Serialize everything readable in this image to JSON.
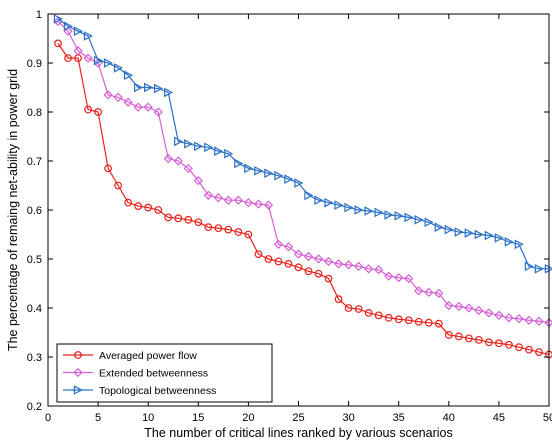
{
  "chart_data": {
    "type": "line",
    "title": "",
    "xlabel": "The number of critical lines ranked by various scenarios",
    "ylabel": "The percentage of remaing net-ability in power grid",
    "xlim": [
      0,
      50
    ],
    "ylim": [
      0.2,
      1
    ],
    "xticks": [
      0,
      5,
      10,
      15,
      20,
      25,
      30,
      35,
      40,
      45,
      50
    ],
    "yticks": [
      0.2,
      0.3,
      0.4,
      0.5,
      0.6,
      0.7,
      0.8,
      0.9,
      1
    ],
    "ytick_labels": [
      "0.2",
      "0.3",
      "0.4",
      "0.5",
      "0.6",
      "0.7",
      "0.8",
      "0.9",
      "1"
    ],
    "grid": false,
    "legend_position": "bottom-left",
    "x": [
      1,
      2,
      3,
      4,
      5,
      6,
      7,
      8,
      9,
      10,
      11,
      12,
      13,
      14,
      15,
      16,
      17,
      18,
      19,
      20,
      21,
      22,
      23,
      24,
      25,
      26,
      27,
      28,
      29,
      30,
      31,
      32,
      33,
      34,
      35,
      36,
      37,
      38,
      39,
      40,
      41,
      42,
      43,
      44,
      45,
      46,
      47,
      48,
      49,
      50
    ],
    "series": [
      {
        "name": "Averaged power flow",
        "color": "#e8211b",
        "marker": "circle",
        "values": [
          0.94,
          0.91,
          0.91,
          0.805,
          0.8,
          0.685,
          0.65,
          0.615,
          0.608,
          0.605,
          0.6,
          0.585,
          0.583,
          0.58,
          0.575,
          0.565,
          0.563,
          0.56,
          0.555,
          0.55,
          0.51,
          0.5,
          0.495,
          0.49,
          0.483,
          0.475,
          0.47,
          0.46,
          0.418,
          0.4,
          0.398,
          0.39,
          0.385,
          0.38,
          0.377,
          0.375,
          0.372,
          0.37,
          0.368,
          0.345,
          0.342,
          0.338,
          0.335,
          0.33,
          0.328,
          0.325,
          0.32,
          0.315,
          0.31,
          0.305
        ]
      },
      {
        "name": "Extended betweenness",
        "color": "#d65fd6",
        "marker": "diamond",
        "values": [
          0.985,
          0.965,
          0.925,
          0.91,
          0.9,
          0.835,
          0.83,
          0.82,
          0.81,
          0.81,
          0.8,
          0.705,
          0.7,
          0.685,
          0.66,
          0.63,
          0.625,
          0.62,
          0.62,
          0.615,
          0.612,
          0.61,
          0.53,
          0.525,
          0.51,
          0.505,
          0.5,
          0.495,
          0.49,
          0.488,
          0.485,
          0.48,
          0.478,
          0.465,
          0.462,
          0.46,
          0.435,
          0.432,
          0.43,
          0.405,
          0.403,
          0.4,
          0.395,
          0.39,
          0.385,
          0.38,
          0.378,
          0.375,
          0.373,
          0.37
        ]
      },
      {
        "name": "Topological betweenness",
        "color": "#2a70c4",
        "marker": "triangle-right",
        "values": [
          0.99,
          0.975,
          0.965,
          0.955,
          0.905,
          0.9,
          0.89,
          0.875,
          0.85,
          0.85,
          0.848,
          0.84,
          0.74,
          0.735,
          0.73,
          0.728,
          0.72,
          0.715,
          0.695,
          0.685,
          0.68,
          0.675,
          0.67,
          0.663,
          0.655,
          0.63,
          0.62,
          0.615,
          0.61,
          0.605,
          0.6,
          0.598,
          0.595,
          0.59,
          0.588,
          0.585,
          0.58,
          0.575,
          0.565,
          0.56,
          0.555,
          0.553,
          0.55,
          0.548,
          0.543,
          0.535,
          0.53,
          0.485,
          0.48,
          0.48
        ]
      }
    ]
  }
}
